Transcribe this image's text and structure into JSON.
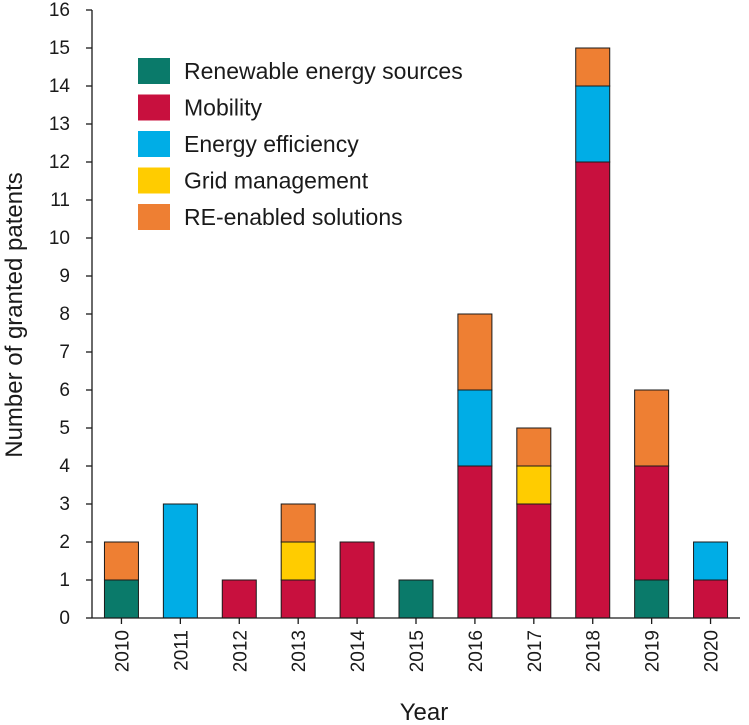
{
  "chart_data": {
    "type": "bar",
    "stacked": true,
    "title": "",
    "xlabel": "Year",
    "ylabel": "Number of granted patents",
    "ylim": [
      0,
      16
    ],
    "yticks": [
      "0",
      "1",
      "2",
      "3",
      "4",
      "5",
      "6",
      "7",
      "8",
      "9",
      "10",
      "11",
      "12",
      "13",
      "14",
      "15",
      "16"
    ],
    "grid": false,
    "legend_position": "top-left",
    "categories": [
      "2010",
      "2011",
      "2012",
      "2013",
      "2014",
      "2015",
      "2016",
      "2017",
      "2018",
      "2019",
      "2020"
    ],
    "series": [
      {
        "name": "Renewable energy sources",
        "color": "#0a7a6a",
        "values": [
          1,
          0,
          0,
          0,
          0,
          1,
          0,
          0,
          0,
          1,
          0
        ]
      },
      {
        "name": "Mobility",
        "color": "#c8103e",
        "values": [
          0,
          0,
          1,
          1,
          2,
          0,
          4,
          3,
          12,
          3,
          1
        ]
      },
      {
        "name": "Energy efficiency",
        "color": "#00ade6",
        "values": [
          0,
          3,
          0,
          0,
          0,
          0,
          2,
          0,
          2,
          0,
          1
        ]
      },
      {
        "name": "Grid management",
        "color": "#ffcc00",
        "values": [
          0,
          0,
          0,
          1,
          0,
          0,
          0,
          1,
          0,
          0,
          0
        ]
      },
      {
        "name": "RE-enabled solutions",
        "color": "#ee7f33",
        "values": [
          1,
          0,
          0,
          1,
          0,
          0,
          2,
          1,
          1,
          2,
          0
        ]
      }
    ]
  }
}
